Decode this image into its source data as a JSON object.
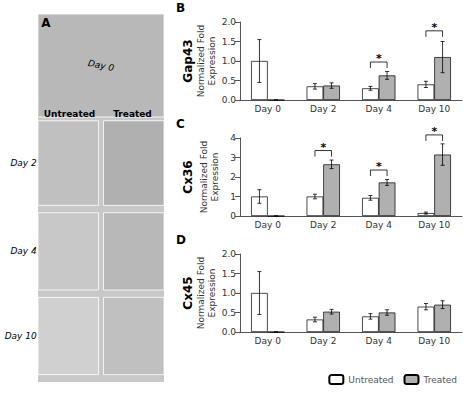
{
  "chart_data": [
    {
      "type": "image_panel",
      "annotations": [
        "A",
        "Day 0",
        "Untreated",
        "Treated",
        "Day 2",
        "Day 4",
        "Day 10"
      ]
    },
    {
      "type": "bar",
      "title": "Gap43",
      "ylabel": "Normalized Fold\nExpression",
      "categories": [
        "Day 0",
        "Day 2",
        "Day 4",
        "Day 10"
      ],
      "series": [
        {
          "name": "Untreated",
          "color": "#ffffff",
          "values": [
            1.0,
            0.35,
            0.3,
            0.4
          ],
          "errors": [
            0.55,
            0.07,
            0.05,
            0.08
          ]
        },
        {
          "name": "Treated",
          "color": "#b0b0b0",
          "values": [
            0.0,
            0.37,
            0.63,
            1.1
          ],
          "errors": [
            0.0,
            0.07,
            0.1,
            0.4
          ]
        }
      ],
      "ylim": [
        0,
        2.0
      ],
      "yticks": [
        {
          "value": 0.0,
          "label": "0.0"
        },
        0.5,
        {
          "value": 1.0,
          "label": "1.0"
        },
        1.5,
        {
          "value": 2.0,
          "label": "2.0"
        }
      ],
      "grid": false,
      "annotations": [
        {
          "text": "B"
        },
        {
          "text": "*",
          "x": "Day 4",
          "y": 0.82
        },
        {
          "text": "*",
          "x": "Day 10",
          "y": 1.62
        }
      ]
    },
    {
      "type": "bar",
      "title": "Cx36",
      "ylabel": "Normalized Fold\nExpression",
      "categories": [
        "Day 0",
        "Day 2",
        "Day 4",
        "Day 10"
      ],
      "series": [
        {
          "name": "Untreated",
          "color": "#ffffff",
          "values": [
            1.0,
            1.0,
            0.93,
            0.15
          ],
          "errors": [
            0.35,
            0.12,
            0.12,
            0.05
          ]
        },
        {
          "name": "Treated",
          "color": "#b0b0b0",
          "values": [
            0.0,
            2.65,
            1.72,
            3.15
          ],
          "errors": [
            0.0,
            0.22,
            0.15,
            0.55
          ]
        }
      ],
      "ylim": [
        0,
        4.0
      ],
      "yticks": [
        0,
        1,
        2,
        3,
        4
      ],
      "grid": false,
      "annotations": [
        {
          "text": "C"
        },
        {
          "text": "*",
          "x": "Day 2",
          "y": 3.05
        },
        {
          "text": "*",
          "x": "Day 4",
          "y": 2.05
        },
        {
          "text": "*",
          "x": "Day 10",
          "y": 3.85
        }
      ]
    },
    {
      "type": "bar",
      "title": "Cx45",
      "ylabel": "Normalized Fold\nExpression",
      "categories": [
        "Day 0",
        "Day 2",
        "Day 4",
        "Day 10"
      ],
      "series": [
        {
          "name": "Untreated",
          "color": "#ffffff",
          "values": [
            1.0,
            0.32,
            0.4,
            0.65
          ],
          "errors": [
            0.55,
            0.06,
            0.07,
            0.08
          ]
        },
        {
          "name": "Treated",
          "color": "#b0b0b0",
          "values": [
            0.0,
            0.52,
            0.5,
            0.7
          ],
          "errors": [
            0.0,
            0.06,
            0.07,
            0.1
          ]
        }
      ],
      "ylim": [
        0,
        2.0
      ],
      "yticks": [
        {
          "value": 0.0,
          "label": "0.0"
        },
        0.5,
        {
          "value": 1.0,
          "label": "1.0"
        },
        1.5,
        {
          "value": 2.0,
          "label": "2.0"
        }
      ],
      "grid": false,
      "legend": "lower right",
      "annotations": [
        {
          "text": "D"
        }
      ]
    }
  ]
}
